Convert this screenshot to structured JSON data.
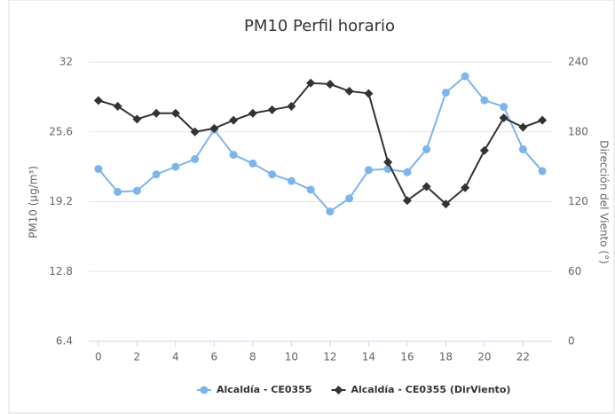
{
  "chart_data": {
    "type": "line",
    "title": "PM10 Perfil horario",
    "y_label": "PM10 (µg/m³)",
    "y2_label": "Dirección del Viento (°)",
    "x": [
      0,
      1,
      2,
      3,
      4,
      5,
      6,
      7,
      8,
      9,
      10,
      11,
      12,
      13,
      14,
      15,
      16,
      17,
      18,
      19,
      20,
      21,
      22,
      23
    ],
    "xlim": [
      -0.5,
      23.5
    ],
    "xticks": [
      0,
      2,
      4,
      6,
      8,
      10,
      12,
      14,
      16,
      18,
      20,
      22
    ],
    "ylim": [
      6.4,
      32
    ],
    "yticks": [
      6.4,
      12.8,
      19.2,
      25.6,
      32
    ],
    "y2lim": [
      0,
      240
    ],
    "y2ticks": [
      0,
      60,
      120,
      180,
      240
    ],
    "grid": true,
    "legend": "bottom",
    "series": [
      {
        "name": "Alcaldía - CE0355",
        "color": "#7cb5ec",
        "marker": "circle",
        "values": [
          22.2,
          20.1,
          20.2,
          21.7,
          22.4,
          23.1,
          25.8,
          23.5,
          22.7,
          21.7,
          21.1,
          20.3,
          18.3,
          19.5,
          22.1,
          22.2,
          21.9,
          24.0,
          29.2,
          30.7,
          28.5,
          27.9,
          24.0,
          22.0
        ]
      },
      {
        "name": "Alcaldía - CE0355 (DirViento)",
        "color": "#333333",
        "marker": "diamond",
        "axis": "y2",
        "values": [
          207,
          202,
          191,
          196,
          196,
          180,
          183,
          190,
          196,
          199,
          202,
          222,
          221,
          215,
          213,
          154,
          121,
          133,
          118,
          132,
          164,
          192,
          184,
          190
        ]
      }
    ]
  }
}
